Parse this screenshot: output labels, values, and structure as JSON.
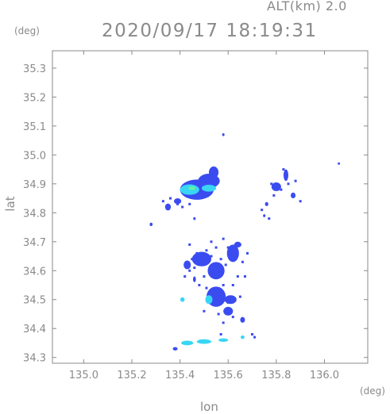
{
  "header": {
    "altitude_label": "ALT(km) 2.0",
    "datetime": "2020/09/17 18:19:31",
    "lat_unit": "(deg)",
    "lon_unit": "(deg)"
  },
  "chart_data": {
    "type": "heatmap",
    "title": "2020/09/17 18:19:31",
    "xlabel": "lon",
    "ylabel": "lat",
    "xlim": [
      134.87,
      136.18
    ],
    "ylim": [
      34.28,
      35.36
    ],
    "x_ticks": [
      135.0,
      135.2,
      135.4,
      135.6,
      135.8,
      136.0
    ],
    "x_tick_labels": [
      "135.0",
      "135.2",
      "135.4",
      "135.6",
      "135.8",
      "136.0"
    ],
    "y_ticks": [
      34.3,
      34.4,
      34.5,
      34.6,
      34.7,
      34.8,
      34.9,
      35.0,
      35.1,
      35.2,
      35.3
    ],
    "y_tick_labels": [
      "34.3",
      "34.4",
      "34.5",
      "34.6",
      "34.7",
      "34.8",
      "34.9",
      "35.0",
      "35.1",
      "35.2",
      "35.3"
    ],
    "grid": false,
    "colors": {
      "weak": "#3a4cf0",
      "moderate": "#38d6f4",
      "strong": "#5ef0a8",
      "frame": "#8a8a8a"
    },
    "echo_cells": [
      {
        "lon": 135.47,
        "lat": 34.88,
        "rlon": 0.07,
        "rlat": 0.035,
        "intensity": "weak"
      },
      {
        "lon": 135.52,
        "lat": 34.91,
        "rlon": 0.045,
        "rlat": 0.025,
        "intensity": "weak"
      },
      {
        "lon": 135.54,
        "lat": 34.94,
        "rlon": 0.02,
        "rlat": 0.02,
        "intensity": "weak"
      },
      {
        "lon": 135.44,
        "lat": 34.88,
        "rlon": 0.04,
        "rlat": 0.018,
        "intensity": "moderate"
      },
      {
        "lon": 135.52,
        "lat": 34.885,
        "rlon": 0.03,
        "rlat": 0.012,
        "intensity": "moderate"
      },
      {
        "lon": 135.45,
        "lat": 34.885,
        "rlon": 0.015,
        "rlat": 0.007,
        "intensity": "strong"
      },
      {
        "lon": 135.35,
        "lat": 34.82,
        "rlon": 0.012,
        "rlat": 0.012,
        "intensity": "weak"
      },
      {
        "lon": 135.39,
        "lat": 34.84,
        "rlon": 0.015,
        "rlat": 0.01,
        "intensity": "weak"
      },
      {
        "lon": 135.28,
        "lat": 34.76,
        "rlon": 0.006,
        "rlat": 0.006,
        "intensity": "weak"
      },
      {
        "lon": 135.46,
        "lat": 34.78,
        "rlon": 0.005,
        "rlat": 0.005,
        "intensity": "weak"
      },
      {
        "lon": 135.58,
        "lat": 35.07,
        "rlon": 0.005,
        "rlat": 0.005,
        "intensity": "weak"
      },
      {
        "lon": 135.8,
        "lat": 34.89,
        "rlon": 0.02,
        "rlat": 0.015,
        "intensity": "weak"
      },
      {
        "lon": 135.84,
        "lat": 34.93,
        "rlon": 0.01,
        "rlat": 0.02,
        "intensity": "weak"
      },
      {
        "lon": 135.87,
        "lat": 34.86,
        "rlon": 0.01,
        "rlat": 0.01,
        "intensity": "weak"
      },
      {
        "lon": 135.76,
        "lat": 34.83,
        "rlon": 0.007,
        "rlat": 0.007,
        "intensity": "weak"
      },
      {
        "lon": 135.75,
        "lat": 34.79,
        "rlon": 0.005,
        "rlat": 0.005,
        "intensity": "weak"
      },
      {
        "lon": 135.49,
        "lat": 34.64,
        "rlon": 0.04,
        "rlat": 0.025,
        "intensity": "weak"
      },
      {
        "lon": 135.55,
        "lat": 34.6,
        "rlon": 0.035,
        "rlat": 0.03,
        "intensity": "weak"
      },
      {
        "lon": 135.62,
        "lat": 34.66,
        "rlon": 0.025,
        "rlat": 0.03,
        "intensity": "weak"
      },
      {
        "lon": 135.64,
        "lat": 34.69,
        "rlon": 0.015,
        "rlat": 0.01,
        "intensity": "weak"
      },
      {
        "lon": 135.43,
        "lat": 34.62,
        "rlon": 0.015,
        "rlat": 0.015,
        "intensity": "weak"
      },
      {
        "lon": 135.46,
        "lat": 34.57,
        "rlon": 0.006,
        "rlat": 0.01,
        "intensity": "weak"
      },
      {
        "lon": 135.55,
        "lat": 34.51,
        "rlon": 0.04,
        "rlat": 0.035,
        "intensity": "weak"
      },
      {
        "lon": 135.61,
        "lat": 34.5,
        "rlon": 0.025,
        "rlat": 0.015,
        "intensity": "weak"
      },
      {
        "lon": 135.6,
        "lat": 34.46,
        "rlon": 0.02,
        "rlat": 0.015,
        "intensity": "weak"
      },
      {
        "lon": 135.52,
        "lat": 34.5,
        "rlon": 0.015,
        "rlat": 0.015,
        "intensity": "moderate"
      },
      {
        "lon": 135.41,
        "lat": 34.5,
        "rlon": 0.009,
        "rlat": 0.008,
        "intensity": "moderate"
      },
      {
        "lon": 135.66,
        "lat": 34.43,
        "rlon": 0.01,
        "rlat": 0.01,
        "intensity": "weak"
      },
      {
        "lon": 135.71,
        "lat": 34.37,
        "rlon": 0.005,
        "rlat": 0.005,
        "intensity": "weak"
      },
      {
        "lon": 135.38,
        "lat": 34.33,
        "rlon": 0.01,
        "rlat": 0.006,
        "intensity": "weak"
      },
      {
        "lon": 135.43,
        "lat": 34.35,
        "rlon": 0.025,
        "rlat": 0.008,
        "intensity": "moderate"
      },
      {
        "lon": 135.5,
        "lat": 34.355,
        "rlon": 0.03,
        "rlat": 0.008,
        "intensity": "moderate"
      },
      {
        "lon": 135.58,
        "lat": 34.36,
        "rlon": 0.02,
        "rlat": 0.006,
        "intensity": "moderate"
      },
      {
        "lon": 135.66,
        "lat": 34.37,
        "rlon": 0.008,
        "rlat": 0.006,
        "intensity": "moderate"
      },
      {
        "lon": 136.06,
        "lat": 34.97,
        "rlon": 0.004,
        "rlat": 0.004,
        "intensity": "weak"
      }
    ],
    "speckles": [
      {
        "lon": 135.44,
        "lat": 34.69
      },
      {
        "lon": 135.47,
        "lat": 34.66
      },
      {
        "lon": 135.51,
        "lat": 34.67
      },
      {
        "lon": 135.53,
        "lat": 34.65
      },
      {
        "lon": 135.57,
        "lat": 34.64
      },
      {
        "lon": 135.59,
        "lat": 34.62
      },
      {
        "lon": 135.66,
        "lat": 34.63
      },
      {
        "lon": 135.64,
        "lat": 34.58
      },
      {
        "lon": 135.5,
        "lat": 34.58
      },
      {
        "lon": 135.48,
        "lat": 34.55
      },
      {
        "lon": 135.58,
        "lat": 34.55
      },
      {
        "lon": 135.62,
        "lat": 34.55
      },
      {
        "lon": 135.44,
        "lat": 34.6
      },
      {
        "lon": 135.42,
        "lat": 34.58
      },
      {
        "lon": 135.53,
        "lat": 34.7
      },
      {
        "lon": 135.58,
        "lat": 34.71
      },
      {
        "lon": 135.6,
        "lat": 34.68
      },
      {
        "lon": 135.55,
        "lat": 34.68
      },
      {
        "lon": 135.65,
        "lat": 34.51
      },
      {
        "lon": 135.62,
        "lat": 34.44
      },
      {
        "lon": 135.58,
        "lat": 34.42
      },
      {
        "lon": 135.56,
        "lat": 34.45
      },
      {
        "lon": 135.5,
        "lat": 34.46
      },
      {
        "lon": 135.51,
        "lat": 34.54
      },
      {
        "lon": 135.67,
        "lat": 34.58
      },
      {
        "lon": 135.68,
        "lat": 34.66
      },
      {
        "lon": 135.45,
        "lat": 34.64
      },
      {
        "lon": 135.46,
        "lat": 34.61
      },
      {
        "lon": 135.39,
        "lat": 34.83
      },
      {
        "lon": 135.36,
        "lat": 34.85
      },
      {
        "lon": 135.33,
        "lat": 34.84
      },
      {
        "lon": 135.44,
        "lat": 34.83
      },
      {
        "lon": 135.41,
        "lat": 34.82
      },
      {
        "lon": 135.78,
        "lat": 34.9
      },
      {
        "lon": 135.82,
        "lat": 34.88
      },
      {
        "lon": 135.85,
        "lat": 34.9
      },
      {
        "lon": 135.88,
        "lat": 34.91
      },
      {
        "lon": 135.83,
        "lat": 34.95
      },
      {
        "lon": 135.79,
        "lat": 34.86
      },
      {
        "lon": 135.74,
        "lat": 34.81
      },
      {
        "lon": 135.77,
        "lat": 34.78
      },
      {
        "lon": 135.9,
        "lat": 34.84
      },
      {
        "lon": 135.7,
        "lat": 34.38
      },
      {
        "lon": 135.6,
        "lat": 34.49
      },
      {
        "lon": 135.57,
        "lat": 34.38
      }
    ]
  }
}
